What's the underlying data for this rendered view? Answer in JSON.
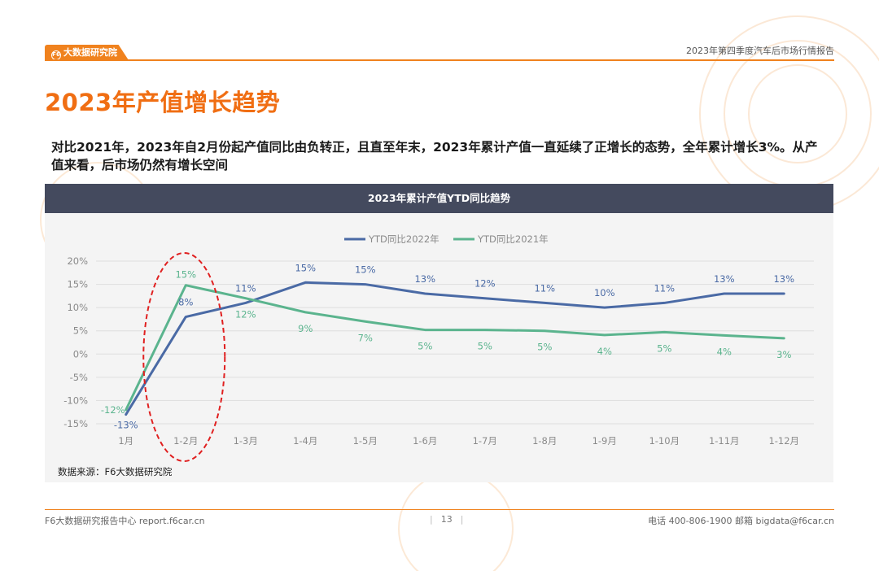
{
  "header": {
    "logo_text": "大数据研究院",
    "report_name": "2023年第四季度汽车后市场行情报告"
  },
  "page_title": "2023年产值增长趋势",
  "summary": "对比2021年，2023年自2月份起产值同比由负转正，且直至年末，2023年累计产值一直延续了正增长的态势，全年累计增长3%。从产值来看，后市场仍然有增长空间",
  "chart_panel": {
    "heading": "2023年累计产值YTD同比趋势",
    "source": "数据来源：F6大数据研究院"
  },
  "chart_data": {
    "type": "line",
    "title": "2023年累计产值YTD同比趋势",
    "categories": [
      "1月",
      "1-2月",
      "1-3月",
      "1-4月",
      "1-5月",
      "1-6月",
      "1-7月",
      "1-8月",
      "1-9月",
      "1-10月",
      "1-11月",
      "1-12月"
    ],
    "series": [
      {
        "name": "YTD同比2022年",
        "color": "#4a6aa5",
        "values": [
          -13,
          8,
          11,
          15.4,
          15,
          13,
          12,
          11,
          10,
          11,
          13,
          13
        ],
        "labels": [
          "-13%",
          "8%",
          "11%",
          "15%",
          "15%",
          "13%",
          "12%",
          "11%",
          "10%",
          "11%",
          "13%",
          "13%"
        ]
      },
      {
        "name": "YTD同比2021年",
        "color": "#5bb48e",
        "values": [
          -12,
          14.8,
          12,
          9,
          7,
          5.2,
          5.2,
          5,
          4.1,
          4.7,
          4,
          3.4
        ],
        "labels": [
          "-12%",
          "15%",
          "12%",
          "9%",
          "7%",
          "5%",
          "5%",
          "5%",
          "4%",
          "5%",
          "4%",
          "3%"
        ]
      }
    ],
    "ylim": [
      -15,
      20
    ],
    "yticks": [
      20,
      15,
      10,
      5,
      0,
      -5,
      -10,
      -15
    ],
    "ytick_labels": [
      "20%",
      "15%",
      "10%",
      "5%",
      "0%",
      "-5%",
      "-10%",
      "-15%"
    ],
    "grid": true,
    "legend_position": "top-center",
    "highlight_category": "1-2月",
    "highlight_color": "#e02020"
  },
  "footer": {
    "left": "F6大数据研究报告中心 report.f6car.cn",
    "page_number": "13",
    "right": "电话 400-806-1900  邮箱 bigdata@f6car.cn"
  }
}
